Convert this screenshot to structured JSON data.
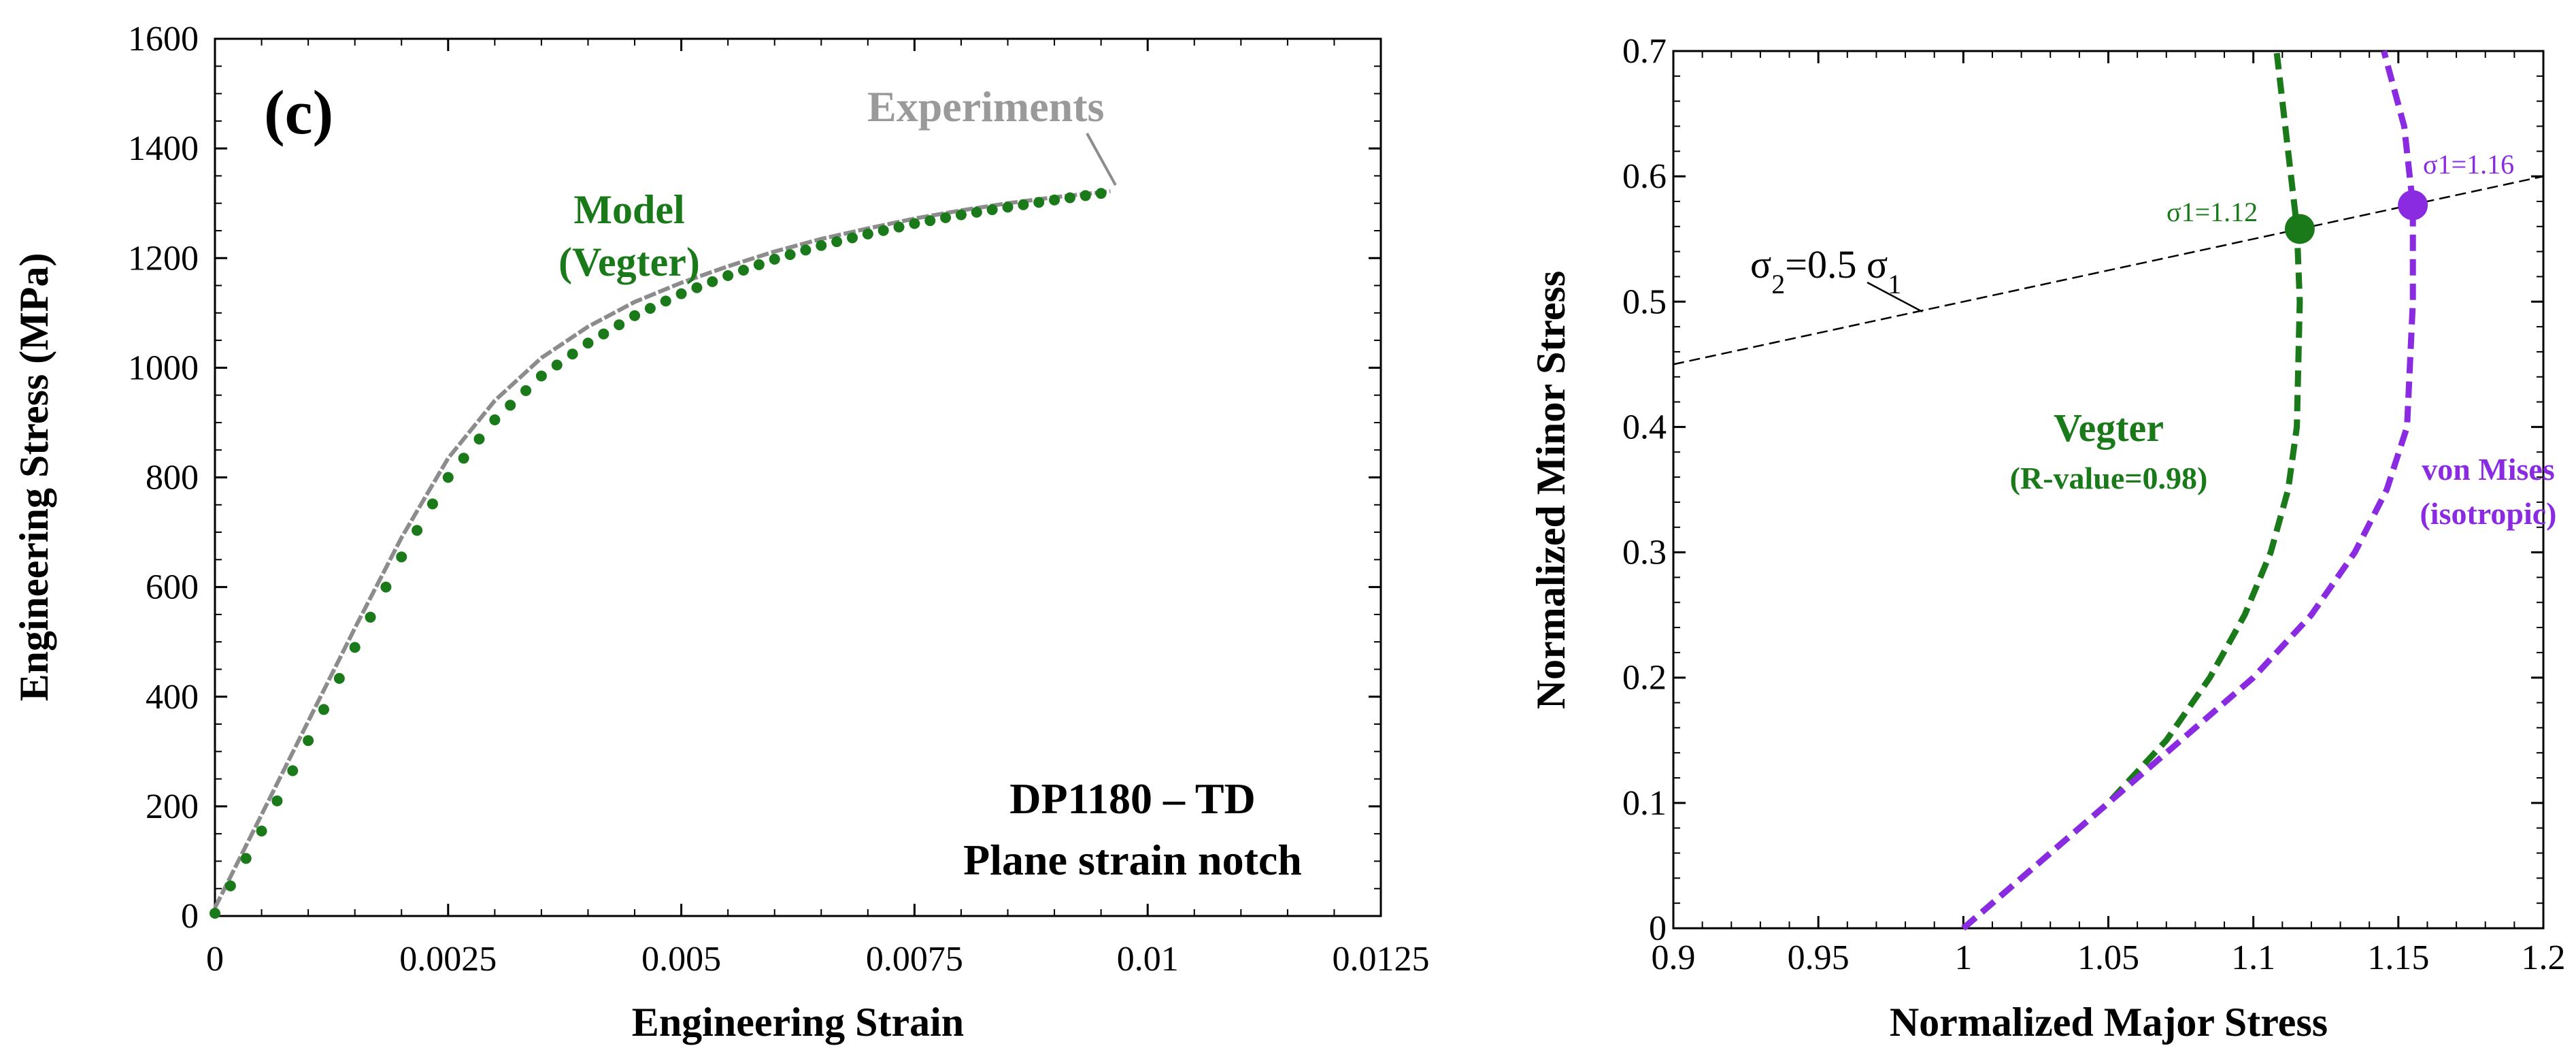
{
  "chart_data": [
    {
      "type": "line",
      "panel_label": "(c)",
      "xlabel": "Engineering Strain",
      "ylabel": "Engineering Stress (MPa)",
      "xlim": [
        0,
        0.0125
      ],
      "ylim": [
        0,
        1600
      ],
      "xticks": [
        0,
        0.0025,
        0.005,
        0.0075,
        0.01,
        0.0125
      ],
      "xtick_labels": [
        "0",
        "0.0025",
        "0.005",
        "0.0075",
        "0.01",
        "0.0125"
      ],
      "yticks": [
        0,
        200,
        400,
        600,
        800,
        1000,
        1200,
        1400,
        1600
      ],
      "ytick_labels": [
        "0",
        "200",
        "400",
        "600",
        "800",
        "1000",
        "1200",
        "1400",
        "1600"
      ],
      "grid": false,
      "series": [
        {
          "name": "Experiments",
          "style": "solid",
          "color": "#8c8c8c",
          "x": [
            0,
            0.0005,
            0.001,
            0.0015,
            0.002,
            0.0025,
            0.003,
            0.0035,
            0.004,
            0.0045,
            0.005,
            0.0055,
            0.006,
            0.0065,
            0.007,
            0.0075,
            0.008,
            0.0085,
            0.009,
            0.0095,
            0.0096
          ],
          "y": [
            15,
            185,
            355,
            525,
            690,
            835,
            940,
            1018,
            1075,
            1120,
            1155,
            1185,
            1212,
            1235,
            1254,
            1272,
            1287,
            1300,
            1311,
            1320,
            1322
          ]
        },
        {
          "name": "Model (Vegter)",
          "style": "dotted",
          "color": "#1a7a1a",
          "x": [
            0,
            0.0005,
            0.001,
            0.0015,
            0.002,
            0.0025,
            0.003,
            0.0035,
            0.004,
            0.0045,
            0.005,
            0.0055,
            0.006,
            0.0065,
            0.007,
            0.0075,
            0.008,
            0.0085,
            0.009,
            0.0095
          ],
          "y": [
            5,
            155,
            320,
            490,
            655,
            800,
            905,
            985,
            1045,
            1095,
            1135,
            1168,
            1198,
            1223,
            1244,
            1263,
            1279,
            1293,
            1306,
            1318
          ]
        }
      ],
      "annotations": [
        {
          "text": "Experiments",
          "color": "#8c8c8c"
        },
        {
          "text": "Model",
          "color": "#1a7a1a"
        },
        {
          "text": "(Vegter)",
          "color": "#1a7a1a"
        },
        {
          "text": "DP1180 – TD",
          "color": "#000000"
        },
        {
          "text": "Plane strain notch",
          "color": "#000000"
        }
      ]
    },
    {
      "type": "line",
      "xlabel": "Normalized Major Stress",
      "ylabel": "Normalized Minor Stress",
      "xlim": [
        0.9,
        1.2
      ],
      "ylim": [
        0,
        0.7
      ],
      "xticks": [
        0.9,
        0.95,
        1,
        1.05,
        1.1,
        1.15,
        1.2
      ],
      "xtick_labels": [
        "0.9",
        "0.95",
        "1",
        "1.05",
        "1.1",
        "1.15",
        "1.2"
      ],
      "yticks": [
        0,
        0.1,
        0.2,
        0.3,
        0.4,
        0.5,
        0.6,
        0.7
      ],
      "ytick_labels": [
        "0",
        "0.1",
        "0.2",
        "0.3",
        "0.4",
        "0.5",
        "0.6",
        "0.7"
      ],
      "grid": false,
      "series": [
        {
          "name": "Vegter (R-value=0.98)",
          "style": "dashed",
          "color": "#1a7a1a",
          "x": [
            1.0,
            1.025,
            1.05,
            1.07,
            1.085,
            1.097,
            1.106,
            1.112,
            1.115,
            1.116,
            1.115,
            1.112,
            1.108
          ],
          "y": [
            0,
            0.05,
            0.1,
            0.15,
            0.2,
            0.25,
            0.3,
            0.35,
            0.4,
            0.5,
            0.56,
            0.62,
            0.7
          ]
        },
        {
          "name": "von Mises (isotropic)",
          "style": "dashed",
          "color": "#8a2be2",
          "x": [
            1.0,
            1.025,
            1.05,
            1.075,
            1.1,
            1.12,
            1.135,
            1.146,
            1.153,
            1.155,
            1.155,
            1.152,
            1.145
          ],
          "y": [
            0,
            0.05,
            0.1,
            0.15,
            0.2,
            0.25,
            0.3,
            0.35,
            0.4,
            0.5,
            0.577,
            0.64,
            0.7
          ]
        },
        {
          "name": "σ2=0.5 σ1",
          "style": "thin-dashed",
          "color": "#000000",
          "x": [
            0.9,
            1.2
          ],
          "y": [
            0.45,
            0.6
          ]
        }
      ],
      "points": [
        {
          "name": "Vegter intersection",
          "x": 1.116,
          "y": 0.558,
          "color": "#1a7a1a",
          "label": "σ1=1.12"
        },
        {
          "name": "von Mises intersection",
          "x": 1.155,
          "y": 0.577,
          "color": "#8a2be2",
          "label": "σ1=1.16"
        }
      ],
      "annotations": [
        {
          "text": "Vegter",
          "color": "#1a7a1a"
        },
        {
          "text": "(R-value=0.98)",
          "color": "#1a7a1a"
        },
        {
          "text": "von Mises",
          "color": "#8a2be2"
        },
        {
          "text": "(isotropic)",
          "color": "#8a2be2"
        }
      ]
    }
  ]
}
